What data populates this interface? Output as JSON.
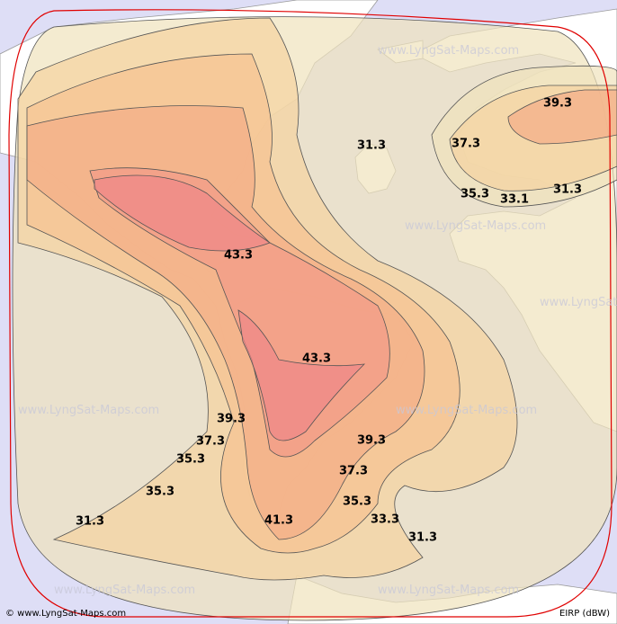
{
  "map_title": null,
  "contour_labels": [
    31.3,
    37.3,
    39.3,
    35.3,
    33.1,
    31.3,
    43.3,
    43.3,
    39.3,
    37.3,
    35.3,
    35.3,
    31.3,
    39.3,
    37.3,
    35.3,
    33.3,
    31.3,
    41.3
  ],
  "watermark": "www.LyngSat-Maps.com",
  "footer": {
    "copyright": "© www.LyngSat-Maps.com",
    "unit": "EIRP (dBW)"
  }
}
